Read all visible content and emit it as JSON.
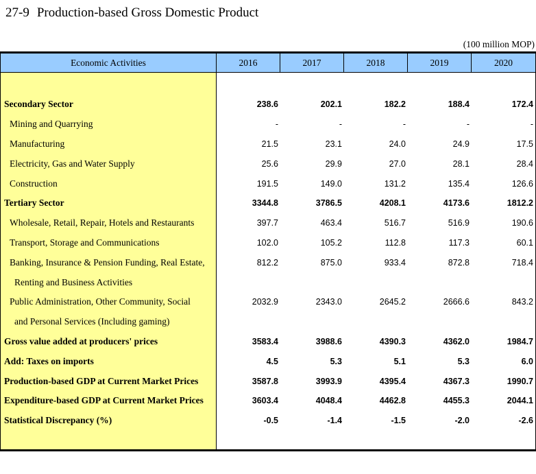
{
  "page": {
    "table_number": "27-9",
    "title": "Production-based Gross Domestic Product",
    "unit_note": "(100 million MOP)"
  },
  "colors": {
    "header_bg": "#99CCFF",
    "label_column_bg": "#FFFF99",
    "border": "#000000",
    "text": "#000000"
  },
  "table": {
    "header": [
      "Economic Activities",
      "2016",
      "2017",
      "2018",
      "2019",
      "2020"
    ],
    "rows": [
      {
        "label": "Secondary Sector",
        "values": [
          "238.6",
          "202.1",
          "182.2",
          "188.4",
          "172.4"
        ]
      },
      {
        "label": "Mining and Quarrying",
        "values": [
          "-",
          "-",
          "-",
          "-",
          "-"
        ]
      },
      {
        "label": "Manufacturing",
        "values": [
          "21.5",
          "23.1",
          "24.0",
          "24.9",
          "17.5"
        ]
      },
      {
        "label": "Electricity, Gas and Water Supply",
        "values": [
          "25.6",
          "29.9",
          "27.0",
          "28.1",
          "28.4"
        ]
      },
      {
        "label": "Construction",
        "values": [
          "191.5",
          "149.0",
          "131.2",
          "135.4",
          "126.6"
        ]
      },
      {
        "label": "Tertiary Sector",
        "values": [
          "3344.8",
          "3786.5",
          "4208.1",
          "4173.6",
          "1812.2"
        ]
      },
      {
        "label": "Wholesale, Retail, Repair, Hotels and Restaurants",
        "values": [
          "397.7",
          "463.4",
          "516.7",
          "516.9",
          "190.6"
        ]
      },
      {
        "label": "Transport, Storage and Communications",
        "values": [
          "102.0",
          "105.2",
          "112.8",
          "117.3",
          "60.1"
        ]
      },
      {
        "label": "Banking, Insurance & Pension Funding, Real Estate,",
        "values": [
          "812.2",
          "875.0",
          "933.4",
          "872.8",
          "718.4"
        ]
      },
      {
        "label": "Renting and Business Activities",
        "values": [
          "",
          "",
          "",
          "",
          ""
        ]
      },
      {
        "label": "Public Administration, Other Community, Social",
        "values": [
          "2032.9",
          "2343.0",
          "2645.2",
          "2666.6",
          "843.2"
        ]
      },
      {
        "label": "and Personal Services (Including gaming)",
        "values": [
          "",
          "",
          "",
          "",
          ""
        ]
      },
      {
        "label": "Gross value added at producers' prices",
        "values": [
          "3583.4",
          "3988.6",
          "4390.3",
          "4362.0",
          "1984.7"
        ]
      },
      {
        "label": "Add: Taxes on imports",
        "values": [
          "4.5",
          "5.3",
          "5.1",
          "5.3",
          "6.0"
        ]
      },
      {
        "label": "Production-based GDP at Current Market Prices",
        "values": [
          "3587.8",
          "3993.9",
          "4395.4",
          "4367.3",
          "1990.7"
        ]
      },
      {
        "label": "Expenditure-based GDP at Current Market Prices",
        "values": [
          "3603.4",
          "4048.4",
          "4462.8",
          "4455.3",
          "2044.1"
        ]
      },
      {
        "label": "Statistical Discrepancy (%)",
        "values": [
          "-0.5",
          "-1.4",
          "-1.5",
          "-2.0",
          "-2.6"
        ]
      }
    ]
  }
}
